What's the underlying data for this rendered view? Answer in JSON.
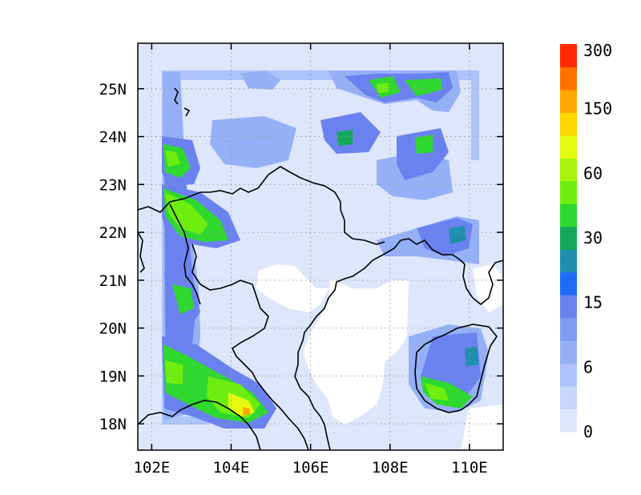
{
  "map": {
    "x_ticks": [
      "102E",
      "104E",
      "106E",
      "108E",
      "110E"
    ],
    "y_ticks": [
      "18N",
      "19N",
      "20N",
      "21N",
      "22N",
      "23N",
      "24N",
      "25N"
    ],
    "lon_range": [
      101.65,
      110.85
    ],
    "lat_range": [
      17.45,
      25.95
    ],
    "tick_lons": [
      102,
      104,
      106,
      108,
      110
    ],
    "tick_lats": [
      18,
      19,
      20,
      21,
      22,
      23,
      24,
      25
    ],
    "grid": "dotted"
  },
  "colorbar": {
    "labels": [
      "0",
      "6",
      "15",
      "30",
      "60",
      "150",
      "300"
    ],
    "colors": [
      "#dde6fb",
      "#c7d6fb",
      "#adc3fa",
      "#95b0f7",
      "#7f9bf3",
      "#6a82ef",
      "#1f6cf4",
      "#1f8fae",
      "#15a85a",
      "#2ed82e",
      "#6eee10",
      "#a8f40c",
      "#e6fa10",
      "#ffd800",
      "#ffa800",
      "#ff7200",
      "#ff2a00"
    ]
  }
}
